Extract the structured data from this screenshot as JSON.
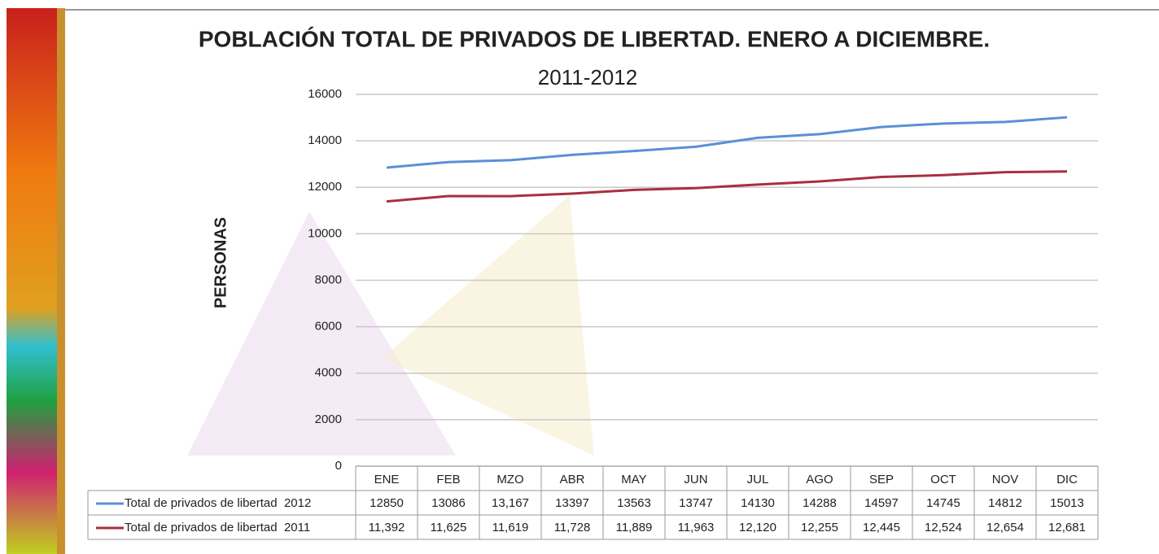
{
  "chart_data": {
    "type": "line",
    "title": "POBLACIÓN TOTAL DE PRIVADOS DE LIBERTAD. ENERO A DICIEMBRE.",
    "subtitle": "2011-2012",
    "y_label": "PERSONAS",
    "categories": [
      "ENE",
      "FEB",
      "MZO",
      "ABR",
      "MAY",
      "JUN",
      "JUL",
      "AGO",
      "SEP",
      "OCT",
      "NOV",
      "DIC"
    ],
    "series": [
      {
        "name": "Total de privados de libertad  2012",
        "color": "#5b8fd8",
        "values": [
          12850,
          13086,
          13167,
          13397,
          13563,
          13747,
          14130,
          14288,
          14597,
          14745,
          14812,
          15013
        ],
        "value_labels": [
          "12850",
          "13086",
          "13,167",
          "13397",
          "13563",
          "13747",
          "14130",
          "14288",
          "14597",
          "14745",
          "14812",
          "15013"
        ]
      },
      {
        "name": "Total de privados de libertad  2011",
        "color": "#a8303f",
        "values": [
          11392,
          11625,
          11619,
          11728,
          11889,
          11963,
          12120,
          12255,
          12445,
          12524,
          12654,
          12681
        ],
        "value_labels": [
          "11,392",
          "11,625",
          "11,619",
          "11,728",
          "11,889",
          "11,963",
          "12,120",
          "12,255",
          "12,445",
          "12,524",
          "12,654",
          "12,681"
        ]
      }
    ],
    "ylim": [
      0,
      16000
    ],
    "yticks": [
      0,
      2000,
      4000,
      6000,
      8000,
      10000,
      12000,
      14000,
      16000
    ],
    "grid": true
  }
}
